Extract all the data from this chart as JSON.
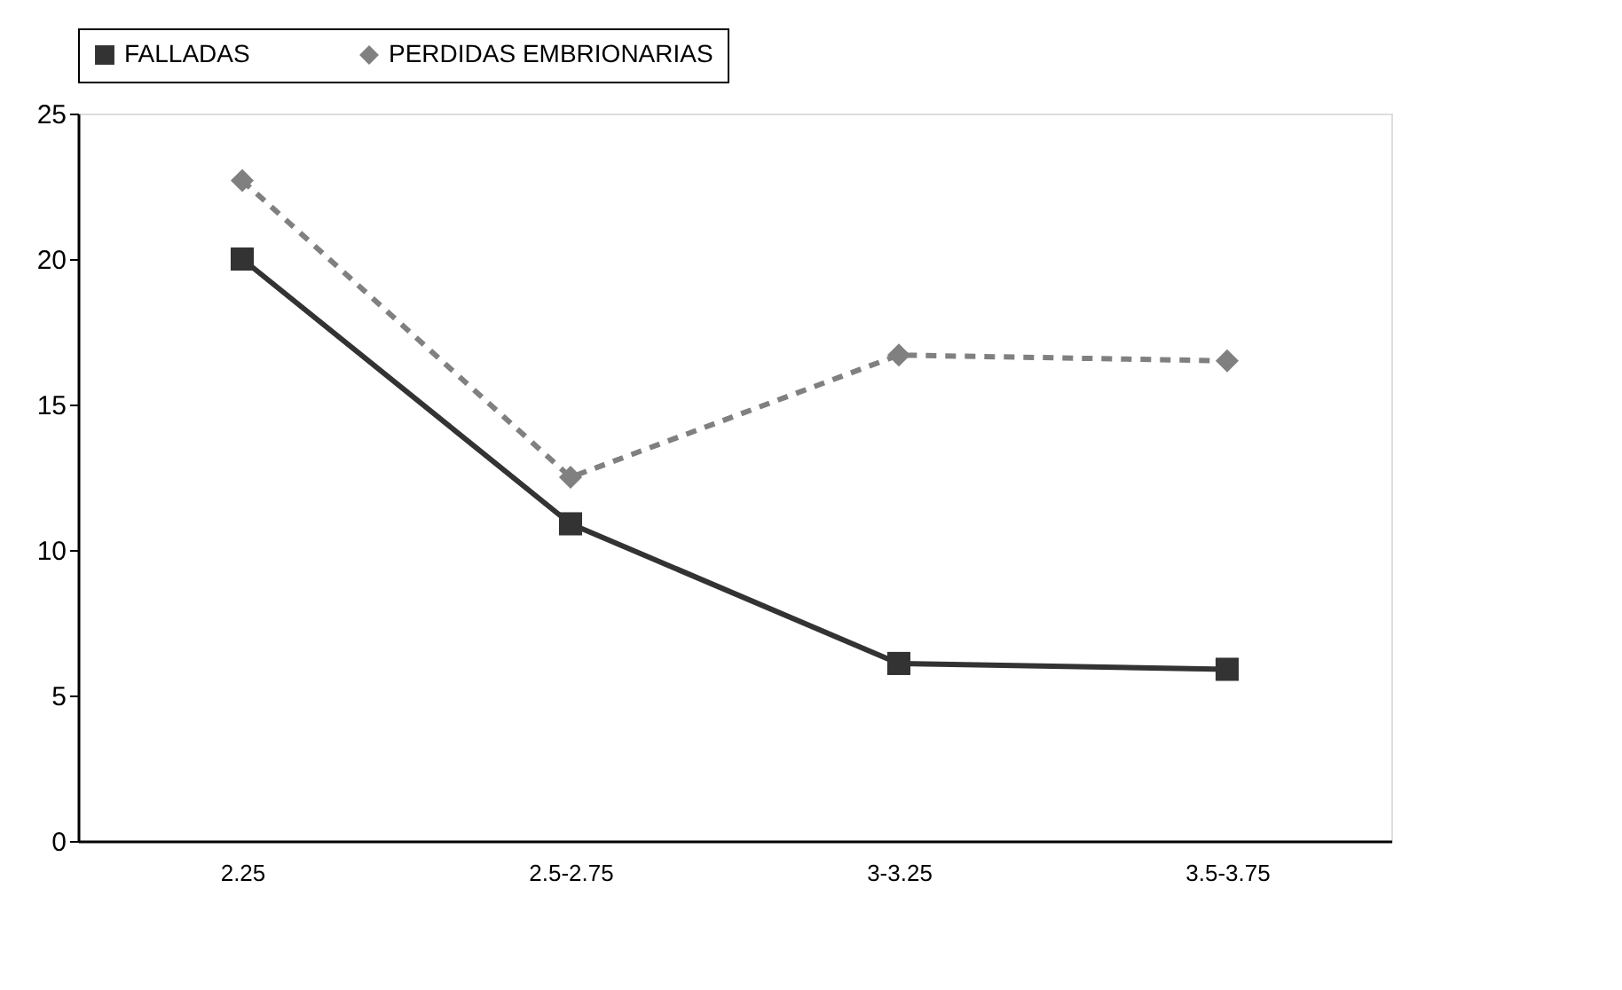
{
  "chart_data": {
    "type": "line",
    "categories": [
      "2.25",
      "2.5-2.75",
      "3-3.25",
      "3.5-3.75"
    ],
    "series": [
      {
        "name": "FALLADAS",
        "color": "#333333",
        "values": [
          20,
          10.9,
          6.1,
          5.9
        ],
        "marker": "square",
        "line_style": "solid"
      },
      {
        "name": "PERDIDAS EMBRIONARIAS",
        "color": "#808080",
        "values": [
          22.7,
          12.5,
          16.7,
          16.5
        ],
        "marker": "diamond",
        "line_style": "dashed"
      }
    ],
    "ylim": [
      0,
      25
    ],
    "yticks": [
      0,
      5,
      10,
      15,
      20,
      25
    ],
    "grid": false,
    "legend": "top"
  }
}
